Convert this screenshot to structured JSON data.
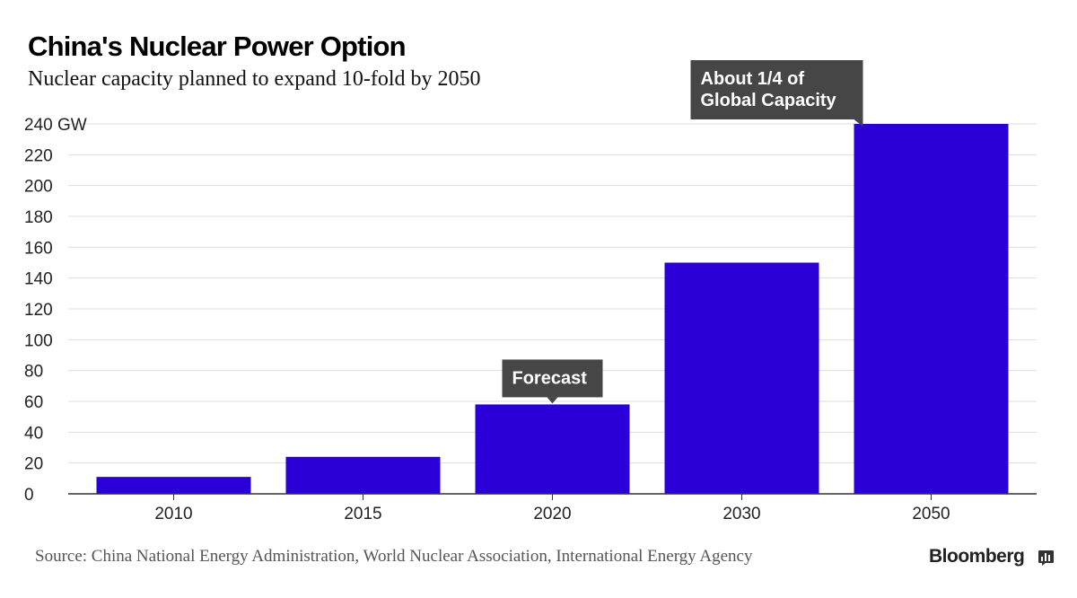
{
  "chart_data": {
    "type": "bar",
    "title": "China's Nuclear Power Option",
    "subtitle": "Nuclear capacity planned to expand 10-fold by 2050",
    "categories": [
      "2010",
      "2015",
      "2020",
      "2030",
      "2050"
    ],
    "values": [
      11,
      24,
      58,
      150,
      240
    ],
    "y_ticks": [
      "0",
      "20",
      "40",
      "60",
      "80",
      "100",
      "120",
      "140",
      "160",
      "180",
      "200",
      "220",
      "240 GW"
    ],
    "y_tick_values": [
      0,
      20,
      40,
      60,
      80,
      100,
      120,
      140,
      160,
      180,
      200,
      220,
      240
    ],
    "ylim": [
      0,
      240
    ],
    "grid": true,
    "bar_color": "#2b00d8",
    "annotations": [
      {
        "category": "2020",
        "lines": [
          "Forecast"
        ]
      },
      {
        "category": "2050",
        "lines": [
          "About 1/4 of",
          "Global Capacity"
        ]
      }
    ],
    "annotation_color": "#464646"
  },
  "source": "Source: China National Energy Administration, World Nuclear Association, International Energy Agency",
  "brand": "Bloomberg"
}
